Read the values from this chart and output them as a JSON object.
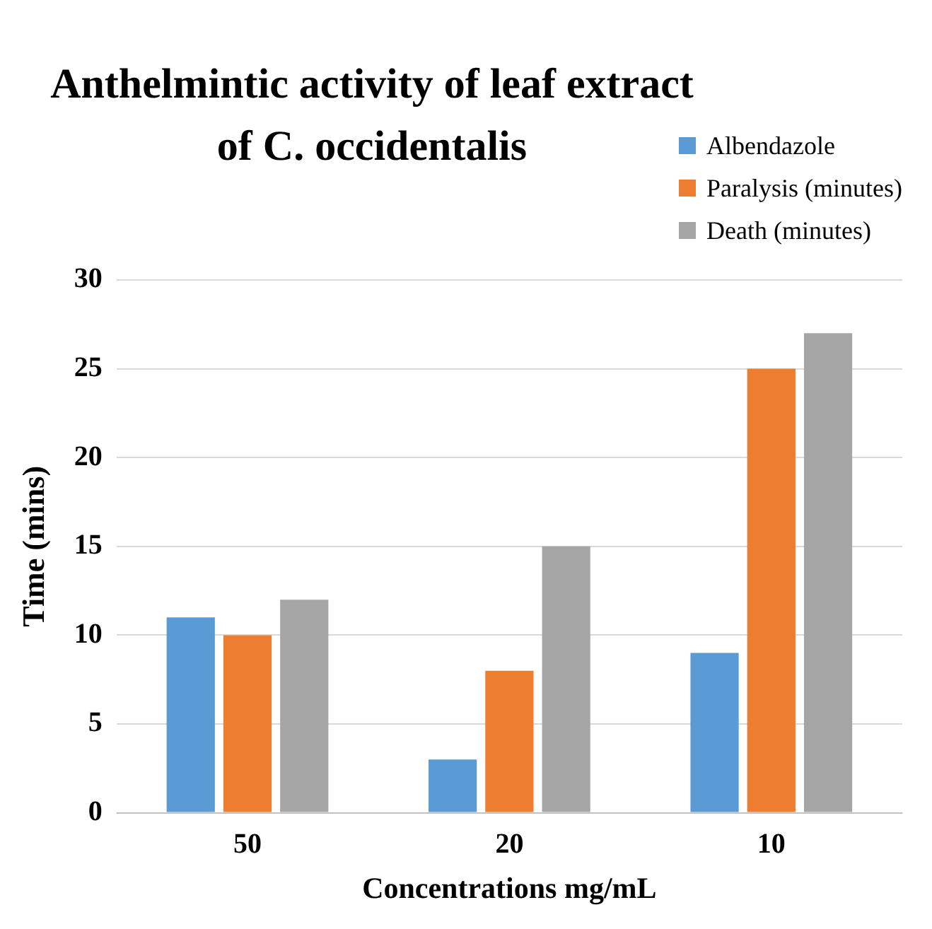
{
  "chart_data": {
    "type": "bar",
    "title": "Anthelmintic activity of leaf extract of C. occidentalis",
    "xlabel": "Concentrations mg/mL",
    "ylabel": "Time (mins)",
    "categories": [
      "50",
      "20",
      "10"
    ],
    "series": [
      {
        "name": "Albendazole",
        "color": "#5b9bd5",
        "values": [
          11,
          3,
          9
        ]
      },
      {
        "name": "Paralysis (minutes)",
        "color": "#ed7d31",
        "values": [
          10,
          8,
          25
        ]
      },
      {
        "name": "Death (minutes)",
        "color": "#a5a5a5",
        "values": [
          12,
          15,
          27
        ]
      }
    ],
    "ylim": [
      0,
      30
    ],
    "yticks": [
      0,
      5,
      10,
      15,
      20,
      25,
      30
    ],
    "grid": "y",
    "legend": "top right"
  }
}
